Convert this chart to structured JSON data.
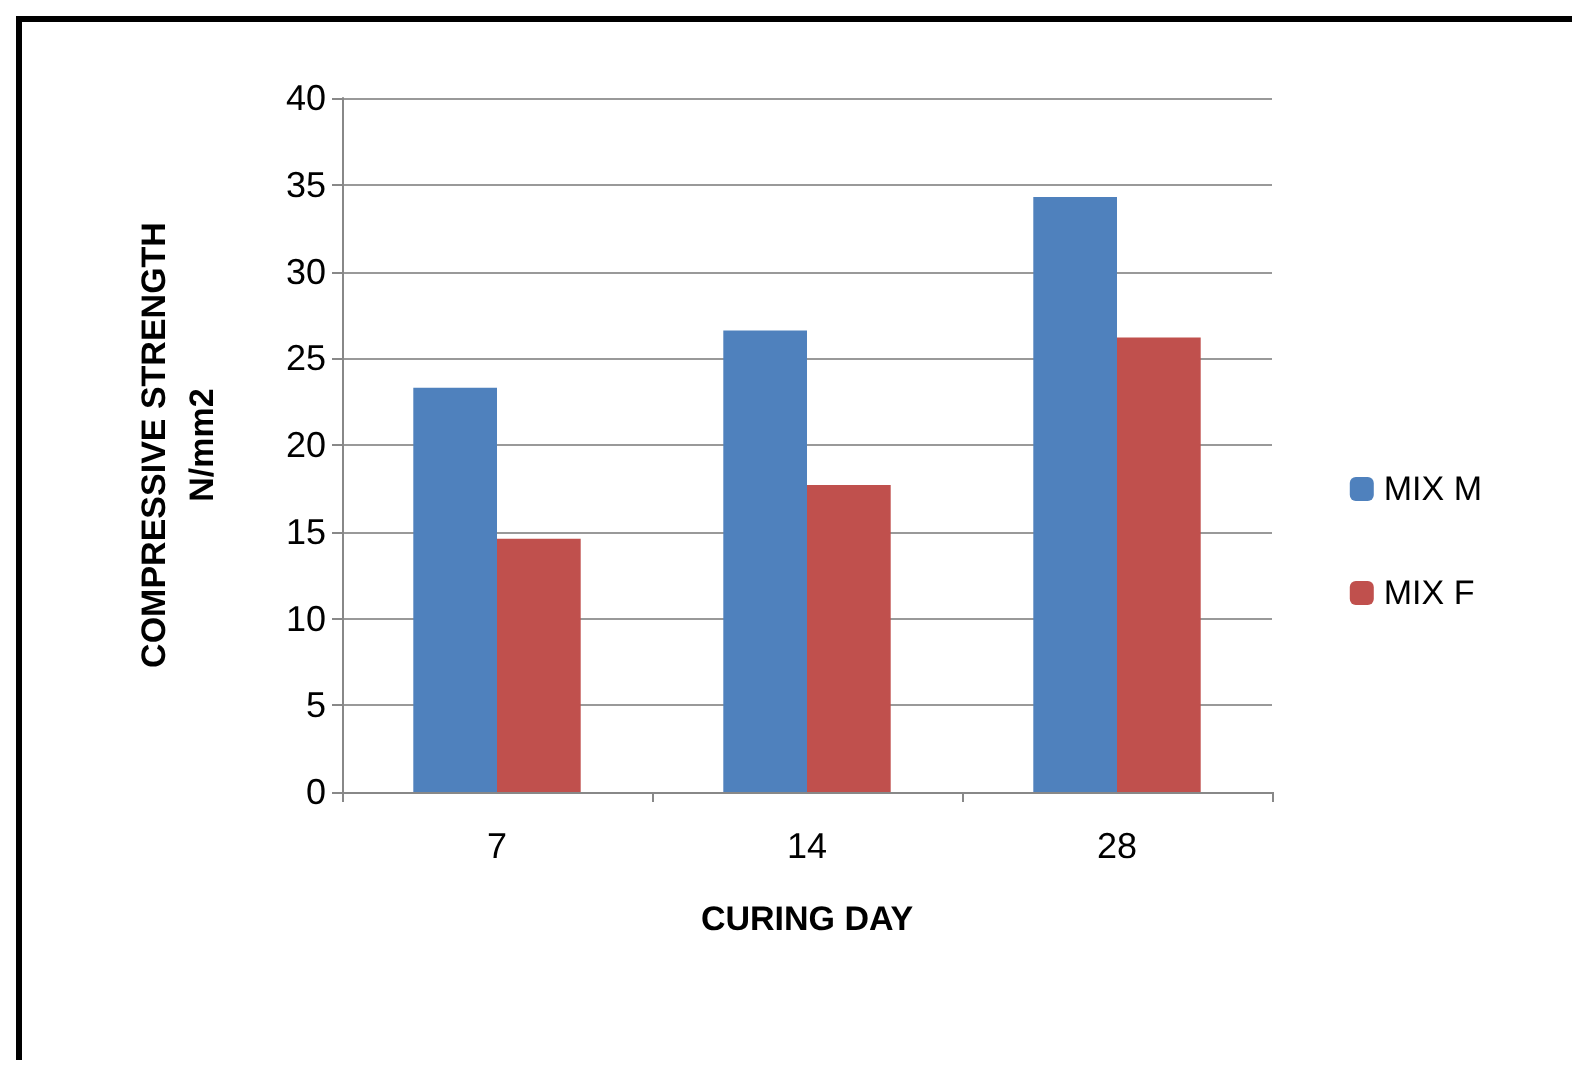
{
  "chart_data": {
    "type": "bar",
    "xlabel": "CURING DAY",
    "ylabel": "COMPRESSIVE STRENGTH\nN/mm2",
    "categories": [
      "7",
      "14",
      "28"
    ],
    "series": [
      {
        "name": "MIX M",
        "color": "#4f81bd",
        "values": [
          23.3,
          26.6,
          34.3
        ]
      },
      {
        "name": "MIX F",
        "color": "#c0504d",
        "values": [
          14.6,
          17.7,
          26.2
        ]
      }
    ],
    "ylim": [
      0,
      40
    ],
    "yticks": [
      0,
      5,
      10,
      15,
      20,
      25,
      30,
      35,
      40
    ],
    "grid": "y",
    "legend": "right"
  }
}
